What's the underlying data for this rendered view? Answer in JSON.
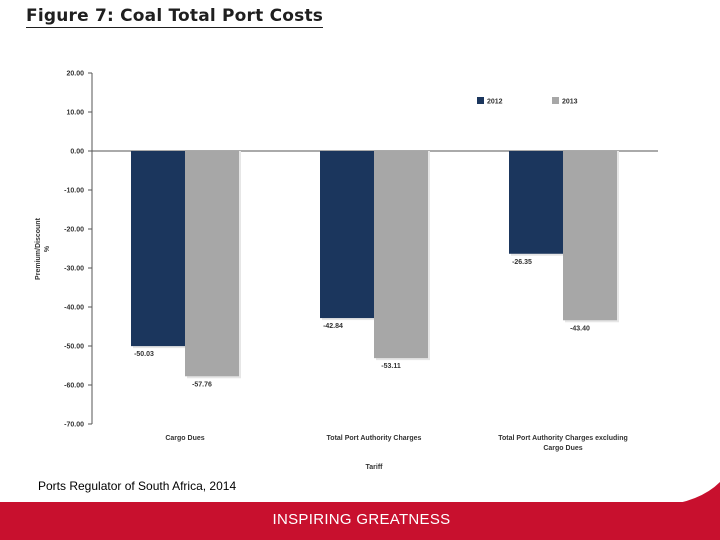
{
  "figure_title": "Figure 7: Coal Total Port Costs",
  "source_text": "Ports Regulator of South Africa,  2014",
  "footer_text": "INSPIRING GREATNESS",
  "colors": {
    "series_2012": "#1b365d",
    "series_2013": "#a7a7a7",
    "footer": "#c8102e"
  },
  "chart_data": {
    "type": "bar",
    "title": "Figure 7: Coal Total Port Costs",
    "xlabel": "Tariff",
    "ylabel": "Premium/Discount %",
    "ylabel_lines": [
      "Premium/Discount",
      "%"
    ],
    "ylim": [
      -70,
      20
    ],
    "yticks": [
      20,
      10,
      0,
      -10,
      -20,
      -30,
      -40,
      -50,
      -60,
      -70
    ],
    "ytick_labels": [
      "20.00",
      "10.00",
      "0.00",
      "-10.00",
      "-20.00",
      "-30.00",
      "-40.00",
      "-50.00",
      "-60.00",
      "-70.00"
    ],
    "categories": [
      "Cargo Dues",
      "Total Port Authority Charges",
      "Total Port Authority Charges excluding Cargo Dues"
    ],
    "category_lines": [
      [
        "Cargo Dues"
      ],
      [
        "Total Port Authority Charges"
      ],
      [
        "Total Port Authority Charges excluding",
        "Cargo Dues"
      ]
    ],
    "series": [
      {
        "name": "2012",
        "values": [
          -50.03,
          -42.84,
          -26.35
        ],
        "labels": [
          "-50.03",
          "-42.84",
          "-26.35"
        ]
      },
      {
        "name": "2013",
        "values": [
          -57.76,
          -53.11,
          -43.4
        ],
        "labels": [
          "-57.76",
          "-53.11",
          "-43.40"
        ]
      }
    ],
    "legend_position": "top-right",
    "grid": false
  }
}
